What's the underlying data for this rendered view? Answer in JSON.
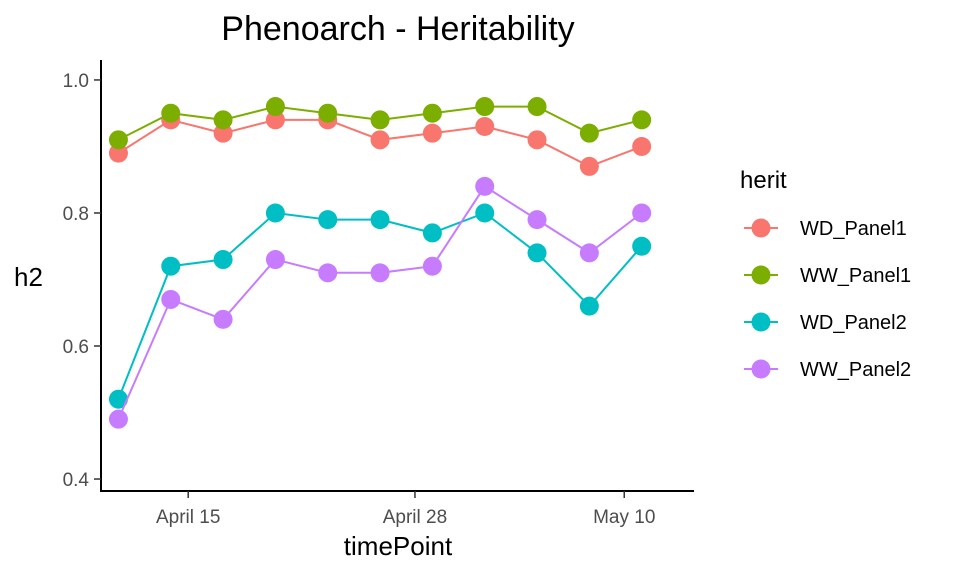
{
  "chart_data": {
    "type": "line",
    "title": "Phenoarch - Heritability",
    "xlabel": "timePoint",
    "ylabel": "h2",
    "ylim": [
      0.4,
      1.0
    ],
    "y_ticks": [
      0.4,
      0.6,
      0.8,
      1.0
    ],
    "y_tick_labels": [
      "0.4",
      "0.6",
      "0.8",
      "1.0"
    ],
    "xlim": [
      "2017-04-10",
      "2017-05-14"
    ],
    "x_ticks": [
      "2017-04-15",
      "2017-04-28",
      "2017-05-10"
    ],
    "x_tick_labels": [
      "April 15",
      "April 28",
      "May 10"
    ],
    "grid": false,
    "legend": {
      "title": "herit",
      "position": "right"
    },
    "x": [
      "2017-04-11",
      "2017-04-14",
      "2017-04-17",
      "2017-04-20",
      "2017-04-23",
      "2017-04-26",
      "2017-04-29",
      "2017-05-02",
      "2017-05-05",
      "2017-05-08",
      "2017-05-11"
    ],
    "series": [
      {
        "name": "WD_Panel1",
        "color": "#F8766D",
        "values": [
          0.89,
          0.94,
          0.92,
          0.94,
          0.94,
          0.91,
          0.92,
          0.93,
          0.91,
          0.87,
          0.9
        ]
      },
      {
        "name": "WW_Panel1",
        "color": "#7CAE00",
        "values": [
          0.91,
          0.95,
          0.94,
          0.96,
          0.95,
          0.94,
          0.95,
          0.96,
          0.96,
          0.92,
          0.94
        ]
      },
      {
        "name": "WD_Panel2",
        "color": "#00BFC4",
        "values": [
          0.52,
          0.72,
          0.73,
          0.8,
          0.79,
          0.79,
          0.77,
          0.8,
          0.74,
          0.66,
          0.75
        ]
      },
      {
        "name": "WW_Panel2",
        "color": "#C77CFF",
        "values": [
          0.49,
          0.67,
          0.64,
          0.73,
          0.71,
          0.71,
          0.72,
          0.84,
          0.79,
          0.74,
          0.8
        ]
      }
    ]
  }
}
